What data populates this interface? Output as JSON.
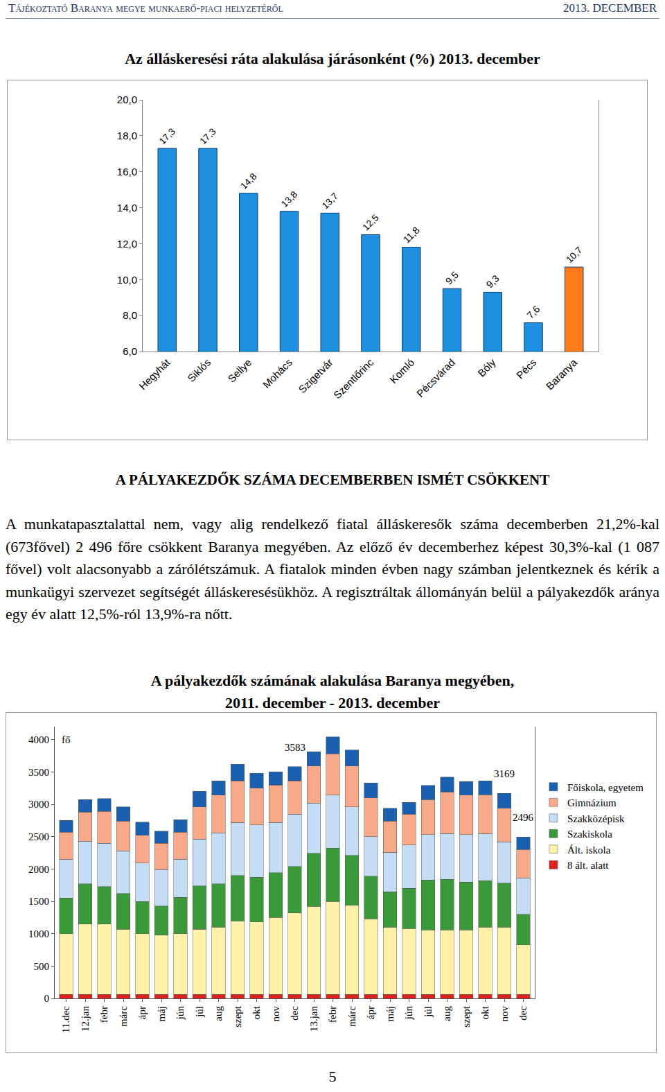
{
  "header": {
    "left": "Tájékoztató Baranya megye munkaerő-piaci helyzetéről",
    "right": "2013. DECEMBER"
  },
  "chart_data": [
    {
      "type": "bar",
      "title": "Az álláskeresési ráta alakulása járásonként (%) 2013. december",
      "categories": [
        "Hegyhát",
        "Siklós",
        "Sellye",
        "Mohács",
        "Szigetvár",
        "Szentlőrinc",
        "Komló",
        "Pécsvárad",
        "Bóly",
        "Pécs",
        "Baranya"
      ],
      "values": [
        17.3,
        17.3,
        14.8,
        13.8,
        13.7,
        12.5,
        11.8,
        9.5,
        9.3,
        7.6,
        10.7
      ],
      "value_labels": [
        "17,3",
        "17,3",
        "14,8",
        "13,8",
        "13,7",
        "12,5",
        "11,8",
        "9,5",
        "9,3",
        "7,6",
        "10,7"
      ],
      "colors": [
        "#1f8fe0",
        "#1f8fe0",
        "#1f8fe0",
        "#1f8fe0",
        "#1f8fe0",
        "#1f8fe0",
        "#1f8fe0",
        "#1f8fe0",
        "#1f8fe0",
        "#1f8fe0",
        "#ff7a1a"
      ],
      "ylim": [
        6,
        20
      ],
      "yticks": [
        {
          "value": 6,
          "label": "6,0"
        },
        {
          "value": 8,
          "label": "8,0"
        },
        {
          "value": 10,
          "label": "10,0"
        },
        {
          "value": 12,
          "label": "12,0"
        },
        {
          "value": 14,
          "label": "14,0"
        },
        {
          "value": 16,
          "label": "16,0"
        },
        {
          "value": 18,
          "label": "18,0"
        },
        {
          "value": 20,
          "label": "20,0"
        }
      ],
      "grid": false,
      "data_labels": true
    },
    {
      "type": "bar",
      "title": "A pályakezdők számának alakulása Baranya megyében,\n2011. december - 2013. december",
      "ylabel": "fő",
      "categories": [
        "11.dec",
        "12.jan",
        "febr",
        "márc",
        "ápr",
        "máj",
        "jún",
        "júl",
        "aug",
        "szept",
        "okt",
        "nov",
        "dec",
        "13.jan",
        "febr",
        "márc",
        "ápr",
        "máj",
        "jún",
        "júl",
        "aug",
        "szept",
        "okt",
        "nov",
        "dec"
      ],
      "stacked": true,
      "series": [
        {
          "name": "8 ált. alatt",
          "color": "#e0201b",
          "values": [
            60,
            60,
            60,
            60,
            60,
            60,
            60,
            60,
            60,
            60,
            60,
            60,
            60,
            60,
            60,
            60,
            60,
            60,
            60,
            60,
            60,
            60,
            60,
            60,
            60
          ]
        },
        {
          "name": "Ált. iskola",
          "color": "#fff2a8",
          "values": [
            940,
            1090,
            1090,
            1010,
            940,
            920,
            940,
            1010,
            1040,
            1140,
            1120,
            1190,
            1260,
            1360,
            1440,
            1380,
            1170,
            1040,
            1020,
            1000,
            1000,
            1000,
            1040,
            1040,
            770
          ]
        },
        {
          "name": "Szakiskola",
          "color": "#3a9a3a",
          "values": [
            550,
            620,
            580,
            550,
            500,
            450,
            560,
            670,
            670,
            700,
            690,
            690,
            720,
            820,
            820,
            770,
            660,
            550,
            620,
            770,
            780,
            740,
            720,
            680,
            470
          ]
        },
        {
          "name": "Szakközépisk",
          "color": "#c5dcf5",
          "values": [
            600,
            660,
            670,
            660,
            590,
            560,
            590,
            720,
            790,
            820,
            810,
            780,
            810,
            780,
            820,
            750,
            610,
            610,
            670,
            700,
            710,
            730,
            730,
            640,
            560
          ]
        },
        {
          "name": "Gimnázium",
          "color": "#f7a98a",
          "values": [
            420,
            450,
            490,
            460,
            430,
            410,
            420,
            500,
            580,
            640,
            570,
            580,
            510,
            570,
            640,
            630,
            600,
            480,
            480,
            540,
            640,
            610,
            600,
            520,
            440
          ]
        },
        {
          "name": "Főiskola, egyetem",
          "color": "#1b5fb0",
          "values": [
            180,
            190,
            200,
            220,
            205,
            185,
            190,
            240,
            220,
            260,
            230,
            200,
            223,
            220,
            260,
            250,
            230,
            200,
            180,
            220,
            230,
            210,
            210,
            229,
            196
          ]
        }
      ],
      "ylim": [
        0,
        4200
      ],
      "yticks": [
        0,
        500,
        1000,
        1500,
        2000,
        2500,
        3000,
        3500,
        4000
      ],
      "grid": false,
      "legend": "right",
      "annotations": [
        {
          "x": 12,
          "y": 3583,
          "text": "3583"
        },
        {
          "x": 23,
          "y": 3169,
          "text": "3169"
        },
        {
          "x": 24,
          "y": 2496,
          "text": "2496"
        }
      ]
    }
  ],
  "section": {
    "heading": "A PÁLYAKEZDŐK SZÁMA DECEMBERBEN ISMÉT CSÖKKENT",
    "paragraph": "A munkatapasztalattal nem, vagy alig rendelkező fiatal álláskeresők száma decemberben 21,2%-kal (673fővel) 2 496 főre csökkent Baranya megyében. Az előző év decemberhez képest 30,3%-kal (1 087 fővel) volt alacsonyabb a zárólétszámuk. A fiatalok minden évben nagy számban jelentkeznek és kérik a munkaügyi szervezet segítségét álláskeresésükhöz. A regisztráltak állományán belül a pályakezdők aránya egy év alatt 12,5%-ról 13,9%-ra nőtt."
  },
  "page_number": "5"
}
